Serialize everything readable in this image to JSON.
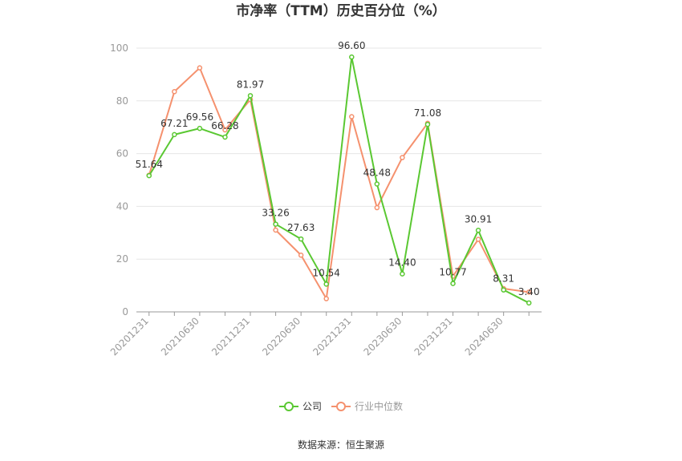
{
  "chart_data": {
    "type": "line",
    "title": "市净率（TTM）历史百分位（%）",
    "x_tick_labels": [
      "20201231",
      "20210630",
      "20211231",
      "20220630",
      "20221231",
      "20230630",
      "20231231",
      "20240630"
    ],
    "x": [
      "20201231",
      "20210331",
      "20210630",
      "20210930",
      "20211231",
      "20220331",
      "20220630",
      "20220930",
      "20221231",
      "20230331",
      "20230630",
      "20230930",
      "20231231",
      "20240331",
      "20240630",
      "20240930"
    ],
    "ylim": [
      0,
      100
    ],
    "yticks": [
      0,
      20,
      40,
      60,
      80,
      100
    ],
    "grid": true,
    "legend_position": "bottom",
    "series": [
      {
        "name": "公司",
        "color": "#5ac832",
        "values": [
          51.64,
          67.21,
          69.56,
          66.28,
          81.97,
          33.26,
          27.63,
          10.54,
          96.6,
          48.48,
          14.4,
          71.08,
          10.77,
          30.91,
          8.31,
          3.4
        ],
        "labels": [
          "51.64",
          "67.21",
          "69.56",
          "66.28",
          "81.97",
          "33.26",
          "27.63",
          "10.54",
          "96.60",
          "48.48",
          "14.40",
          "71.08",
          "10.77",
          "30.91",
          "8.31",
          "3.40"
        ]
      },
      {
        "name": "行业中位数",
        "color": "#f5916e",
        "values": [
          51.8,
          83.5,
          92.5,
          69.0,
          80.5,
          31.0,
          21.5,
          5.0,
          74.0,
          39.5,
          58.5,
          71.5,
          13.5,
          27.5,
          8.8,
          7.5
        ]
      }
    ],
    "source": "数据来源：恒生聚源"
  }
}
